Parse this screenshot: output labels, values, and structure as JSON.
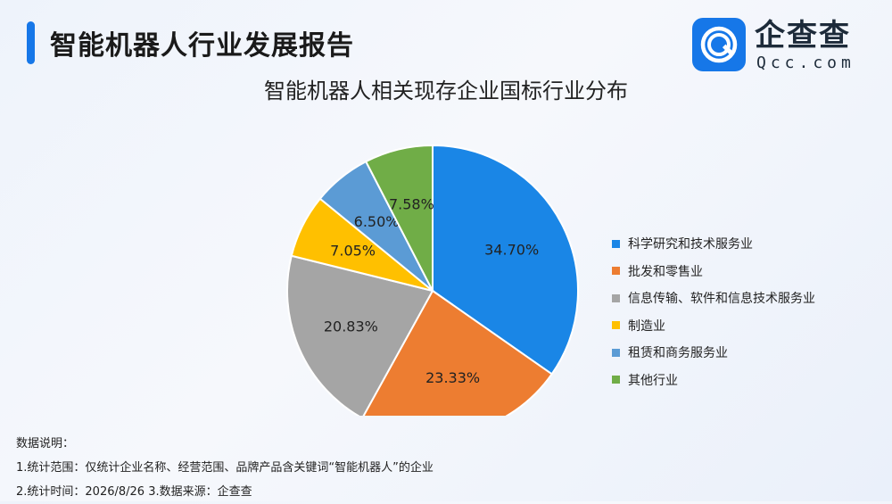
{
  "header": {
    "title": "智能机器人行业发展报告"
  },
  "logo": {
    "name_cn": "企查查",
    "name_en": "Qcc.com"
  },
  "chart_data": {
    "type": "pie",
    "title": "智能机器人相关现存企业国标行业分布",
    "categories": [
      "科学研究和技术服务业",
      "批发和零售业",
      "信息传输、软件和信息技术服务业",
      "制造业",
      "租赁和商务服务业",
      "其他行业"
    ],
    "values": [
      34.7,
      23.33,
      20.83,
      7.05,
      6.5,
      7.58
    ],
    "labels": [
      "34.70%",
      "23.33%",
      "20.83%",
      "7.05%",
      "6.50%",
      "7.58%"
    ],
    "colors": [
      "#1a86e6",
      "#ed7d31",
      "#a5a5a5",
      "#ffc000",
      "#5b9bd5",
      "#70ad47"
    ],
    "start_angle": "12 o'clock, clockwise",
    "legend_position": "right"
  },
  "notes": {
    "heading": "数据说明：",
    "line1": "1.统计范围：仅统计企业名称、经营范围、品牌产品含关键词“智能机器人”的企业",
    "line2": "2.统计时间：2026/8/26 3.数据来源：企查查"
  }
}
